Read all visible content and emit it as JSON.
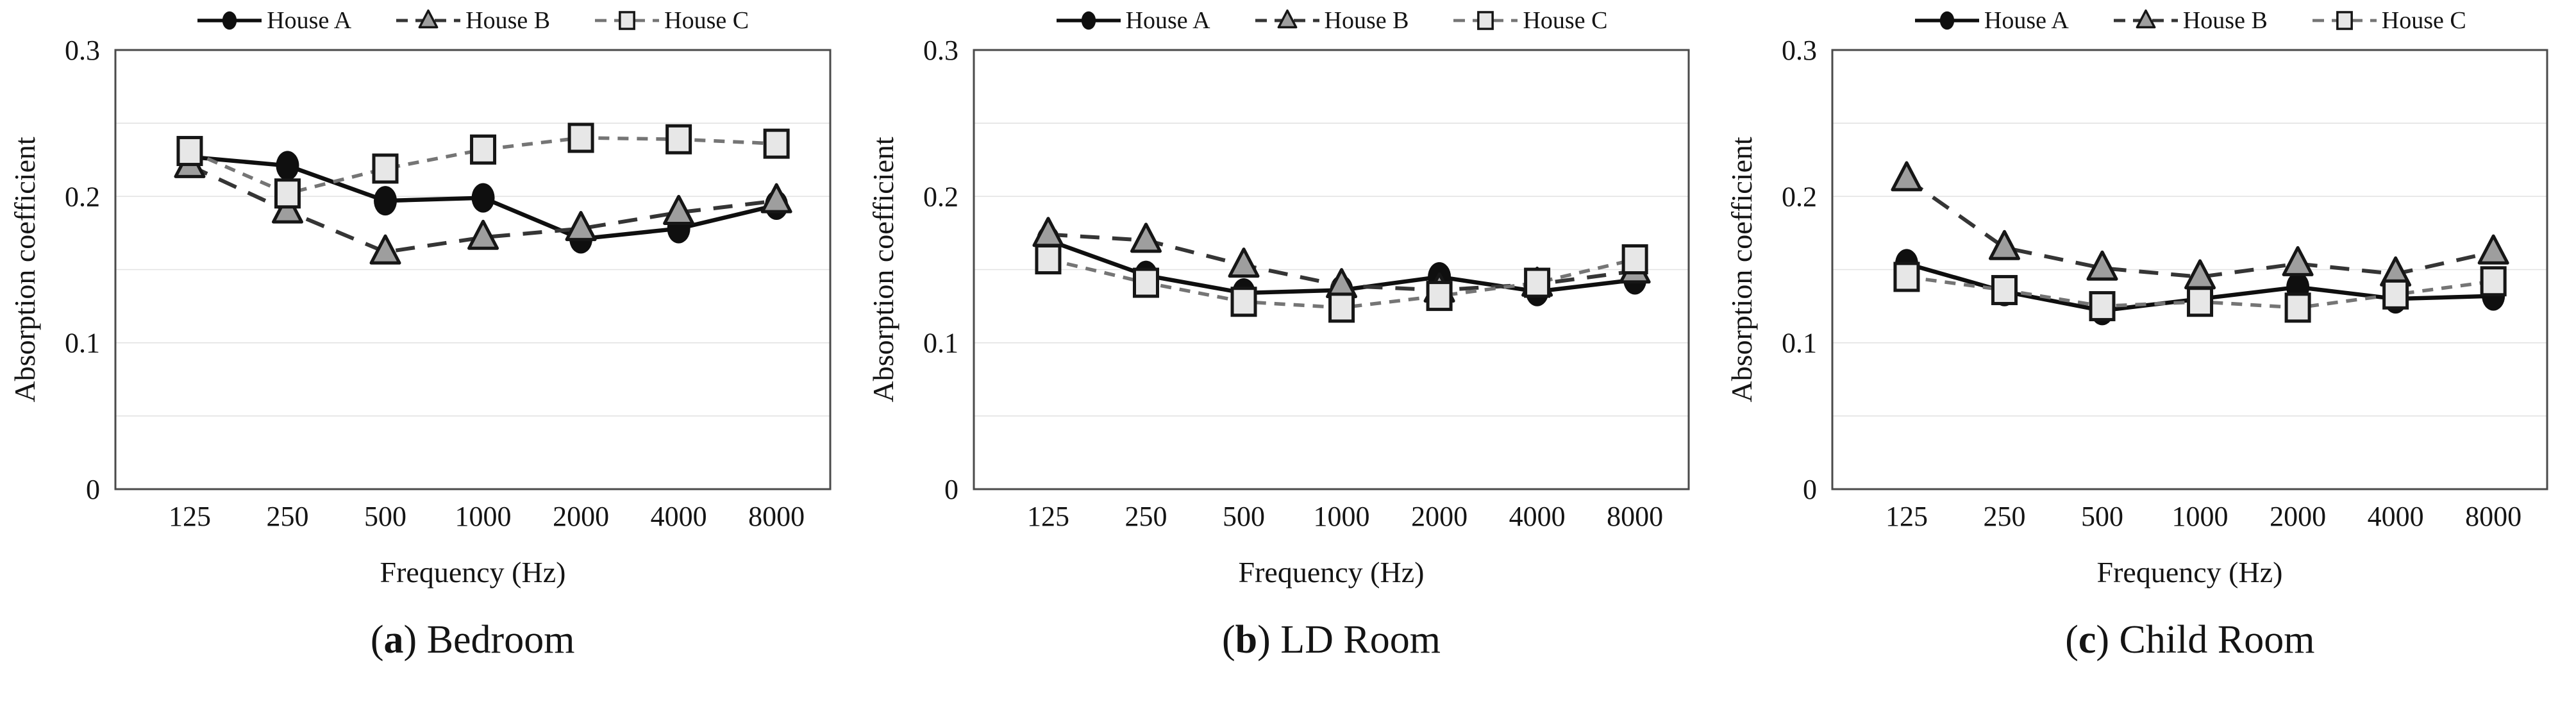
{
  "labels": {
    "paren_open": "(",
    "paren_close": ")"
  },
  "style": {
    "axis_color": "#4a4a4a",
    "grid_color": "#e2e2e2",
    "text_color": "#141414",
    "background": "#ffffff"
  },
  "chart_data": [
    {
      "type": "line",
      "caption_letter": "a",
      "caption_text": "Bedroom",
      "xlabel": "Frequency  (Hz)",
      "ylabel": "Absorption coefficient",
      "categories": [
        "125",
        "250",
        "500",
        "1000",
        "2000",
        "4000",
        "8000"
      ],
      "ylim": [
        0,
        0.3
      ],
      "grid_interval": 0.05,
      "grid_on": true,
      "legend_position": "top",
      "yticks": [
        {
          "value": 0.3,
          "label": "0.3"
        },
        {
          "value": 0.2,
          "label": "0.2"
        },
        {
          "value": 0.1,
          "label": "0.1"
        },
        {
          "value": 0.0,
          "label": "0"
        }
      ],
      "series": [
        {
          "name": "House A",
          "marker": "circle",
          "line": "solid",
          "color": "#0f0f0f",
          "fill": "#0f0f0f",
          "dash": "",
          "width": 6.5,
          "values": [
            0.227,
            0.221,
            0.197,
            0.199,
            0.171,
            0.178,
            0.194
          ]
        },
        {
          "name": "House B",
          "marker": "triangle",
          "line": "dashed",
          "color": "#353535",
          "fill": "#9e9e9e",
          "dash": "30 20",
          "width": 6,
          "values": [
            0.221,
            0.19,
            0.162,
            0.172,
            0.178,
            0.189,
            0.197
          ]
        },
        {
          "name": "House C",
          "marker": "square",
          "line": "dashed-fine",
          "color": "#757575",
          "fill": "#e7e7e7",
          "dash": "17 13",
          "width": 5.5,
          "values": [
            0.231,
            0.202,
            0.219,
            0.232,
            0.24,
            0.239,
            0.236
          ]
        }
      ]
    },
    {
      "type": "line",
      "caption_letter": "b",
      "caption_text": "LD Room",
      "xlabel": "Frequency  (Hz)",
      "ylabel": "Absorption coefficient",
      "categories": [
        "125",
        "250",
        "500",
        "1000",
        "2000",
        "4000",
        "8000"
      ],
      "ylim": [
        0,
        0.3
      ],
      "grid_interval": 0.05,
      "grid_on": true,
      "legend_position": "top",
      "yticks": [
        {
          "value": 0.3,
          "label": "0.3"
        },
        {
          "value": 0.2,
          "label": "0.2"
        },
        {
          "value": 0.1,
          "label": "0.1"
        },
        {
          "value": 0.0,
          "label": "0"
        }
      ],
      "series": [
        {
          "name": "House A",
          "marker": "circle",
          "line": "solid",
          "color": "#0f0f0f",
          "fill": "#0f0f0f",
          "dash": "",
          "width": 6.5,
          "values": [
            0.17,
            0.146,
            0.134,
            0.136,
            0.145,
            0.135,
            0.143
          ]
        },
        {
          "name": "House B",
          "marker": "triangle",
          "line": "dashed",
          "color": "#353535",
          "fill": "#9e9e9e",
          "dash": "30 20",
          "width": 6,
          "values": [
            0.174,
            0.17,
            0.153,
            0.139,
            0.136,
            0.14,
            0.149
          ]
        },
        {
          "name": "House C",
          "marker": "square",
          "line": "dashed-fine",
          "color": "#757575",
          "fill": "#e7e7e7",
          "dash": "17 13",
          "width": 5.5,
          "values": [
            0.157,
            0.141,
            0.128,
            0.124,
            0.132,
            0.141,
            0.157
          ]
        }
      ]
    },
    {
      "type": "line",
      "caption_letter": "c",
      "caption_text": "Child Room",
      "xlabel": "Frequency  (Hz)",
      "ylabel": "Absorption coefficient",
      "categories": [
        "125",
        "250",
        "500",
        "1000",
        "2000",
        "4000",
        "8000"
      ],
      "ylim": [
        0,
        0.3
      ],
      "grid_interval": 0.05,
      "grid_on": true,
      "legend_position": "top",
      "yticks": [
        {
          "value": 0.3,
          "label": "0.3"
        },
        {
          "value": 0.2,
          "label": "0.2"
        },
        {
          "value": 0.1,
          "label": "0.1"
        },
        {
          "value": 0.0,
          "label": "0"
        }
      ],
      "series": [
        {
          "name": "House A",
          "marker": "circle",
          "line": "solid",
          "color": "#0f0f0f",
          "fill": "#0f0f0f",
          "dash": "",
          "width": 6.5,
          "values": [
            0.154,
            0.135,
            0.122,
            0.13,
            0.138,
            0.13,
            0.132
          ]
        },
        {
          "name": "House B",
          "marker": "triangle",
          "line": "dashed",
          "color": "#353535",
          "fill": "#9e9e9e",
          "dash": "30 20",
          "width": 6,
          "values": [
            0.212,
            0.165,
            0.151,
            0.145,
            0.154,
            0.147,
            0.162
          ]
        },
        {
          "name": "House C",
          "marker": "square",
          "line": "dashed-fine",
          "color": "#757575",
          "fill": "#e7e7e7",
          "dash": "17 13",
          "width": 5.5,
          "values": [
            0.145,
            0.136,
            0.125,
            0.128,
            0.124,
            0.133,
            0.142
          ]
        }
      ]
    }
  ]
}
